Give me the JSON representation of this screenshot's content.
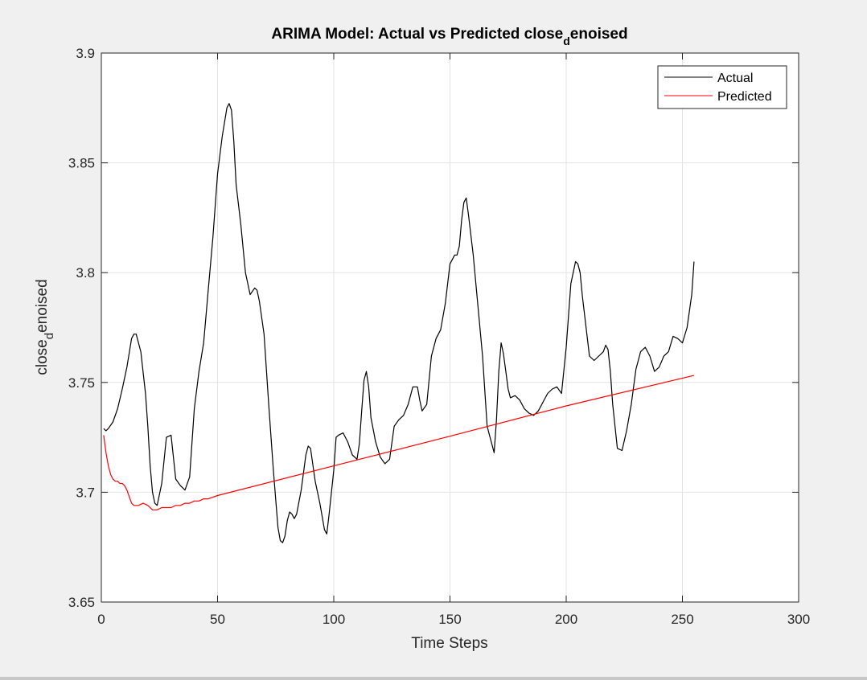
{
  "chart_data": {
    "type": "line",
    "title": {
      "before": "ARIMA Model: Actual vs Predicted close",
      "sub": "d",
      "after": "enoised"
    },
    "xlabel": "Time Steps",
    "ylabel": {
      "before": "close",
      "sub": "d",
      "after": "enoised"
    },
    "xlim": [
      0,
      300
    ],
    "ylim": [
      3.65,
      3.9
    ],
    "xticks": [
      0,
      50,
      100,
      150,
      200,
      250,
      300
    ],
    "yticks": [
      3.65,
      3.7,
      3.75,
      3.8,
      3.85,
      3.9
    ],
    "ytick_labels": [
      "3.65",
      "3.7",
      "3.75",
      "3.8",
      "3.85",
      "3.9"
    ],
    "grid": true,
    "legend_position": "top-right",
    "series": [
      {
        "name": "Actual",
        "color": "#000000",
        "x": [
          1,
          2,
          3,
          5,
          7,
          9,
          11,
          13,
          14,
          15,
          17,
          19,
          20,
          21,
          22,
          23,
          24,
          26,
          28,
          30,
          32,
          34,
          36,
          38,
          40,
          42,
          44,
          46,
          48,
          50,
          52,
          54,
          55,
          56,
          57,
          58,
          60,
          62,
          64,
          66,
          67,
          68,
          70,
          72,
          74,
          76,
          77,
          78,
          79,
          80,
          81,
          82,
          83,
          84,
          86,
          88,
          89,
          90,
          92,
          94,
          96,
          97,
          98,
          100,
          101,
          102,
          104,
          106,
          108,
          110,
          111,
          112,
          113,
          114,
          115,
          116,
          118,
          120,
          122,
          124,
          126,
          128,
          130,
          132,
          134,
          136,
          137,
          138,
          140,
          142,
          144,
          146,
          148,
          150,
          152,
          153,
          154,
          155,
          156,
          157,
          158,
          160,
          162,
          164,
          166,
          168,
          169,
          170,
          171,
          172,
          173,
          174,
          175,
          176,
          178,
          180,
          182,
          184,
          186,
          188,
          190,
          192,
          194,
          196,
          198,
          200,
          202,
          204,
          205,
          206,
          207,
          208,
          210,
          212,
          214,
          216,
          217,
          218,
          219,
          220,
          221,
          222,
          224,
          226,
          228,
          230,
          232,
          234,
          236,
          238,
          240,
          242,
          244,
          246,
          248,
          250,
          252,
          254,
          255
        ],
        "y": [
          3.729,
          3.728,
          3.729,
          3.732,
          3.738,
          3.747,
          3.757,
          3.77,
          3.772,
          3.772,
          3.764,
          3.745,
          3.73,
          3.712,
          3.7,
          3.695,
          3.694,
          3.704,
          3.725,
          3.726,
          3.706,
          3.703,
          3.701,
          3.707,
          3.738,
          3.755,
          3.768,
          3.792,
          3.816,
          3.845,
          3.862,
          3.875,
          3.877,
          3.874,
          3.86,
          3.84,
          3.822,
          3.8,
          3.79,
          3.793,
          3.792,
          3.787,
          3.772,
          3.74,
          3.71,
          3.684,
          3.678,
          3.677,
          3.68,
          3.687,
          3.691,
          3.69,
          3.688,
          3.69,
          3.701,
          3.717,
          3.721,
          3.72,
          3.705,
          3.695,
          3.683,
          3.681,
          3.69,
          3.71,
          3.725,
          3.726,
          3.727,
          3.723,
          3.717,
          3.715,
          3.722,
          3.737,
          3.751,
          3.755,
          3.748,
          3.734,
          3.723,
          3.716,
          3.713,
          3.715,
          3.73,
          3.733,
          3.735,
          3.74,
          3.748,
          3.748,
          3.742,
          3.737,
          3.74,
          3.762,
          3.77,
          3.774,
          3.786,
          3.804,
          3.808,
          3.808,
          3.812,
          3.824,
          3.832,
          3.834,
          3.826,
          3.808,
          3.785,
          3.762,
          3.73,
          3.722,
          3.718,
          3.733,
          3.755,
          3.768,
          3.763,
          3.755,
          3.747,
          3.743,
          3.744,
          3.742,
          3.738,
          3.736,
          3.735,
          3.737,
          3.741,
          3.745,
          3.747,
          3.748,
          3.745,
          3.766,
          3.795,
          3.805,
          3.804,
          3.8,
          3.789,
          3.78,
          3.762,
          3.76,
          3.762,
          3.764,
          3.767,
          3.765,
          3.755,
          3.74,
          3.73,
          3.72,
          3.719,
          3.728,
          3.74,
          3.756,
          3.764,
          3.766,
          3.762,
          3.755,
          3.757,
          3.762,
          3.764,
          3.771,
          3.77,
          3.768,
          3.775,
          3.79,
          3.805
        ]
      },
      {
        "name": "Predicted",
        "color": "#ff0000",
        "x": [
          1,
          2,
          3,
          4,
          5,
          6,
          7,
          8,
          9,
          10,
          11,
          12,
          13,
          14,
          15,
          16,
          18,
          20,
          22,
          24,
          26,
          28,
          30,
          32,
          34,
          36,
          38,
          40,
          42,
          44,
          46,
          50,
          100,
          150,
          200,
          255
        ],
        "y": [
          3.726,
          3.718,
          3.712,
          3.708,
          3.706,
          3.705,
          3.705,
          3.704,
          3.704,
          3.703,
          3.701,
          3.698,
          3.695,
          3.694,
          3.694,
          3.694,
          3.695,
          3.694,
          3.692,
          3.692,
          3.693,
          3.693,
          3.693,
          3.694,
          3.694,
          3.695,
          3.695,
          3.696,
          3.696,
          3.697,
          3.697,
          3.6985,
          3.712,
          3.7255,
          3.7393,
          3.7532
        ]
      }
    ]
  }
}
